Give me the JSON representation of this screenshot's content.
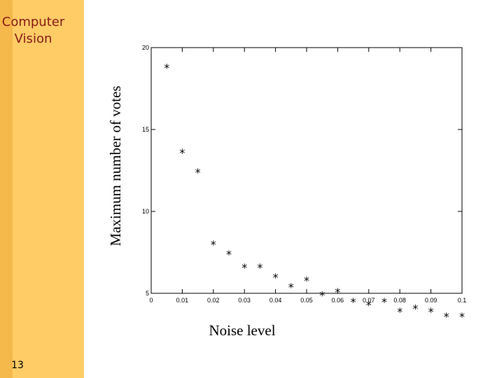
{
  "colors": {
    "sidebar_bg": "#F5B84A",
    "sidebar_stripe": "#FFCC66",
    "sidebar_text": "#8B1A1A",
    "background": "#FFFFFF"
  },
  "sidebar": {
    "title": "Computer\nVision",
    "slide_number": "13"
  },
  "chart_data": {
    "type": "scatter",
    "marker": "*",
    "xlabel": "Noise level",
    "ylabel": "Maximum number of votes",
    "xlim": [
      0,
      0.1
    ],
    "ylim": [
      5,
      20
    ],
    "xticks": [
      0,
      0.01,
      0.02,
      0.03,
      0.04,
      0.05,
      0.06,
      0.07,
      0.08,
      0.09,
      0.1
    ],
    "xtick_labels": [
      "0",
      "0.01",
      "0.02",
      "0.03",
      "0.04",
      "0.05",
      "0.06",
      "0.07",
      "0.08",
      "0.09",
      "0.1"
    ],
    "yticks": [
      5,
      10,
      15,
      20
    ],
    "ytick_labels": [
      "5",
      "10",
      "15",
      "20"
    ],
    "grid": false,
    "series": [
      {
        "x": [
          0.005,
          0.01,
          0.015,
          0.02,
          0.025,
          0.03,
          0.035,
          0.04,
          0.045,
          0.05,
          0.055,
          0.06,
          0.065,
          0.07,
          0.075,
          0.08,
          0.085,
          0.09,
          0.095,
          0.1
        ],
        "y": [
          19,
          13.8,
          12.6,
          8.2,
          7.6,
          6.8,
          6.8,
          6.2,
          5.6,
          6,
          5.1,
          5.3,
          4.7,
          4.5,
          4.7,
          4.1,
          4.3,
          4.1,
          3.8,
          3.8
        ]
      }
    ]
  }
}
